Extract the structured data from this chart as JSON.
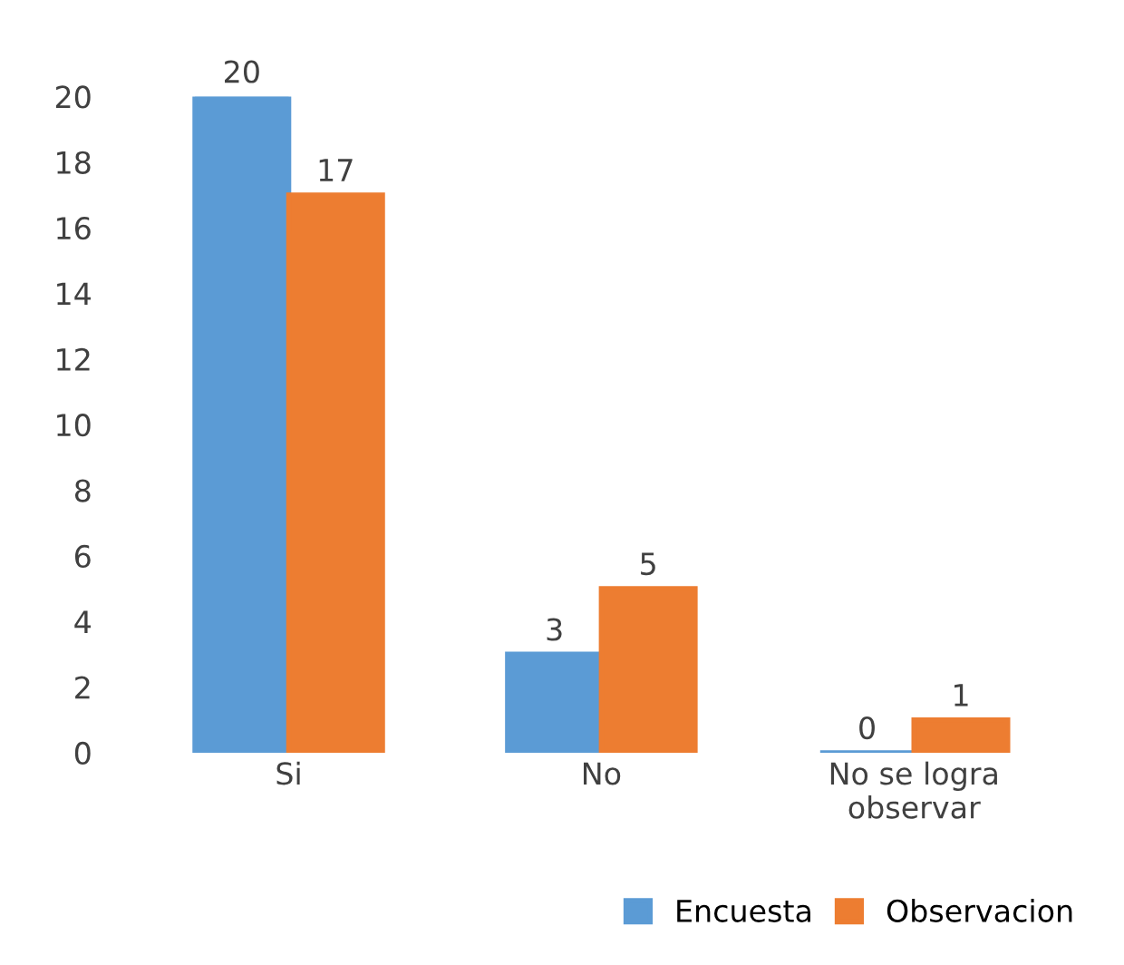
{
  "chart_data": {
    "type": "bar",
    "categories": [
      "Si",
      "No",
      "No se logra\nobservar"
    ],
    "series": [
      {
        "name": "Encuesta",
        "color": "#5b9bd5",
        "values": [
          20,
          3,
          0
        ]
      },
      {
        "name": "Observacion",
        "color": "#ed7d31",
        "values": [
          17,
          5,
          1
        ]
      }
    ],
    "ylim": [
      0,
      20
    ],
    "yticks": [
      0,
      2,
      4,
      6,
      8,
      10,
      12,
      14,
      16,
      18,
      20
    ],
    "data_labels": true,
    "grid": false,
    "legend": "bottom right"
  }
}
